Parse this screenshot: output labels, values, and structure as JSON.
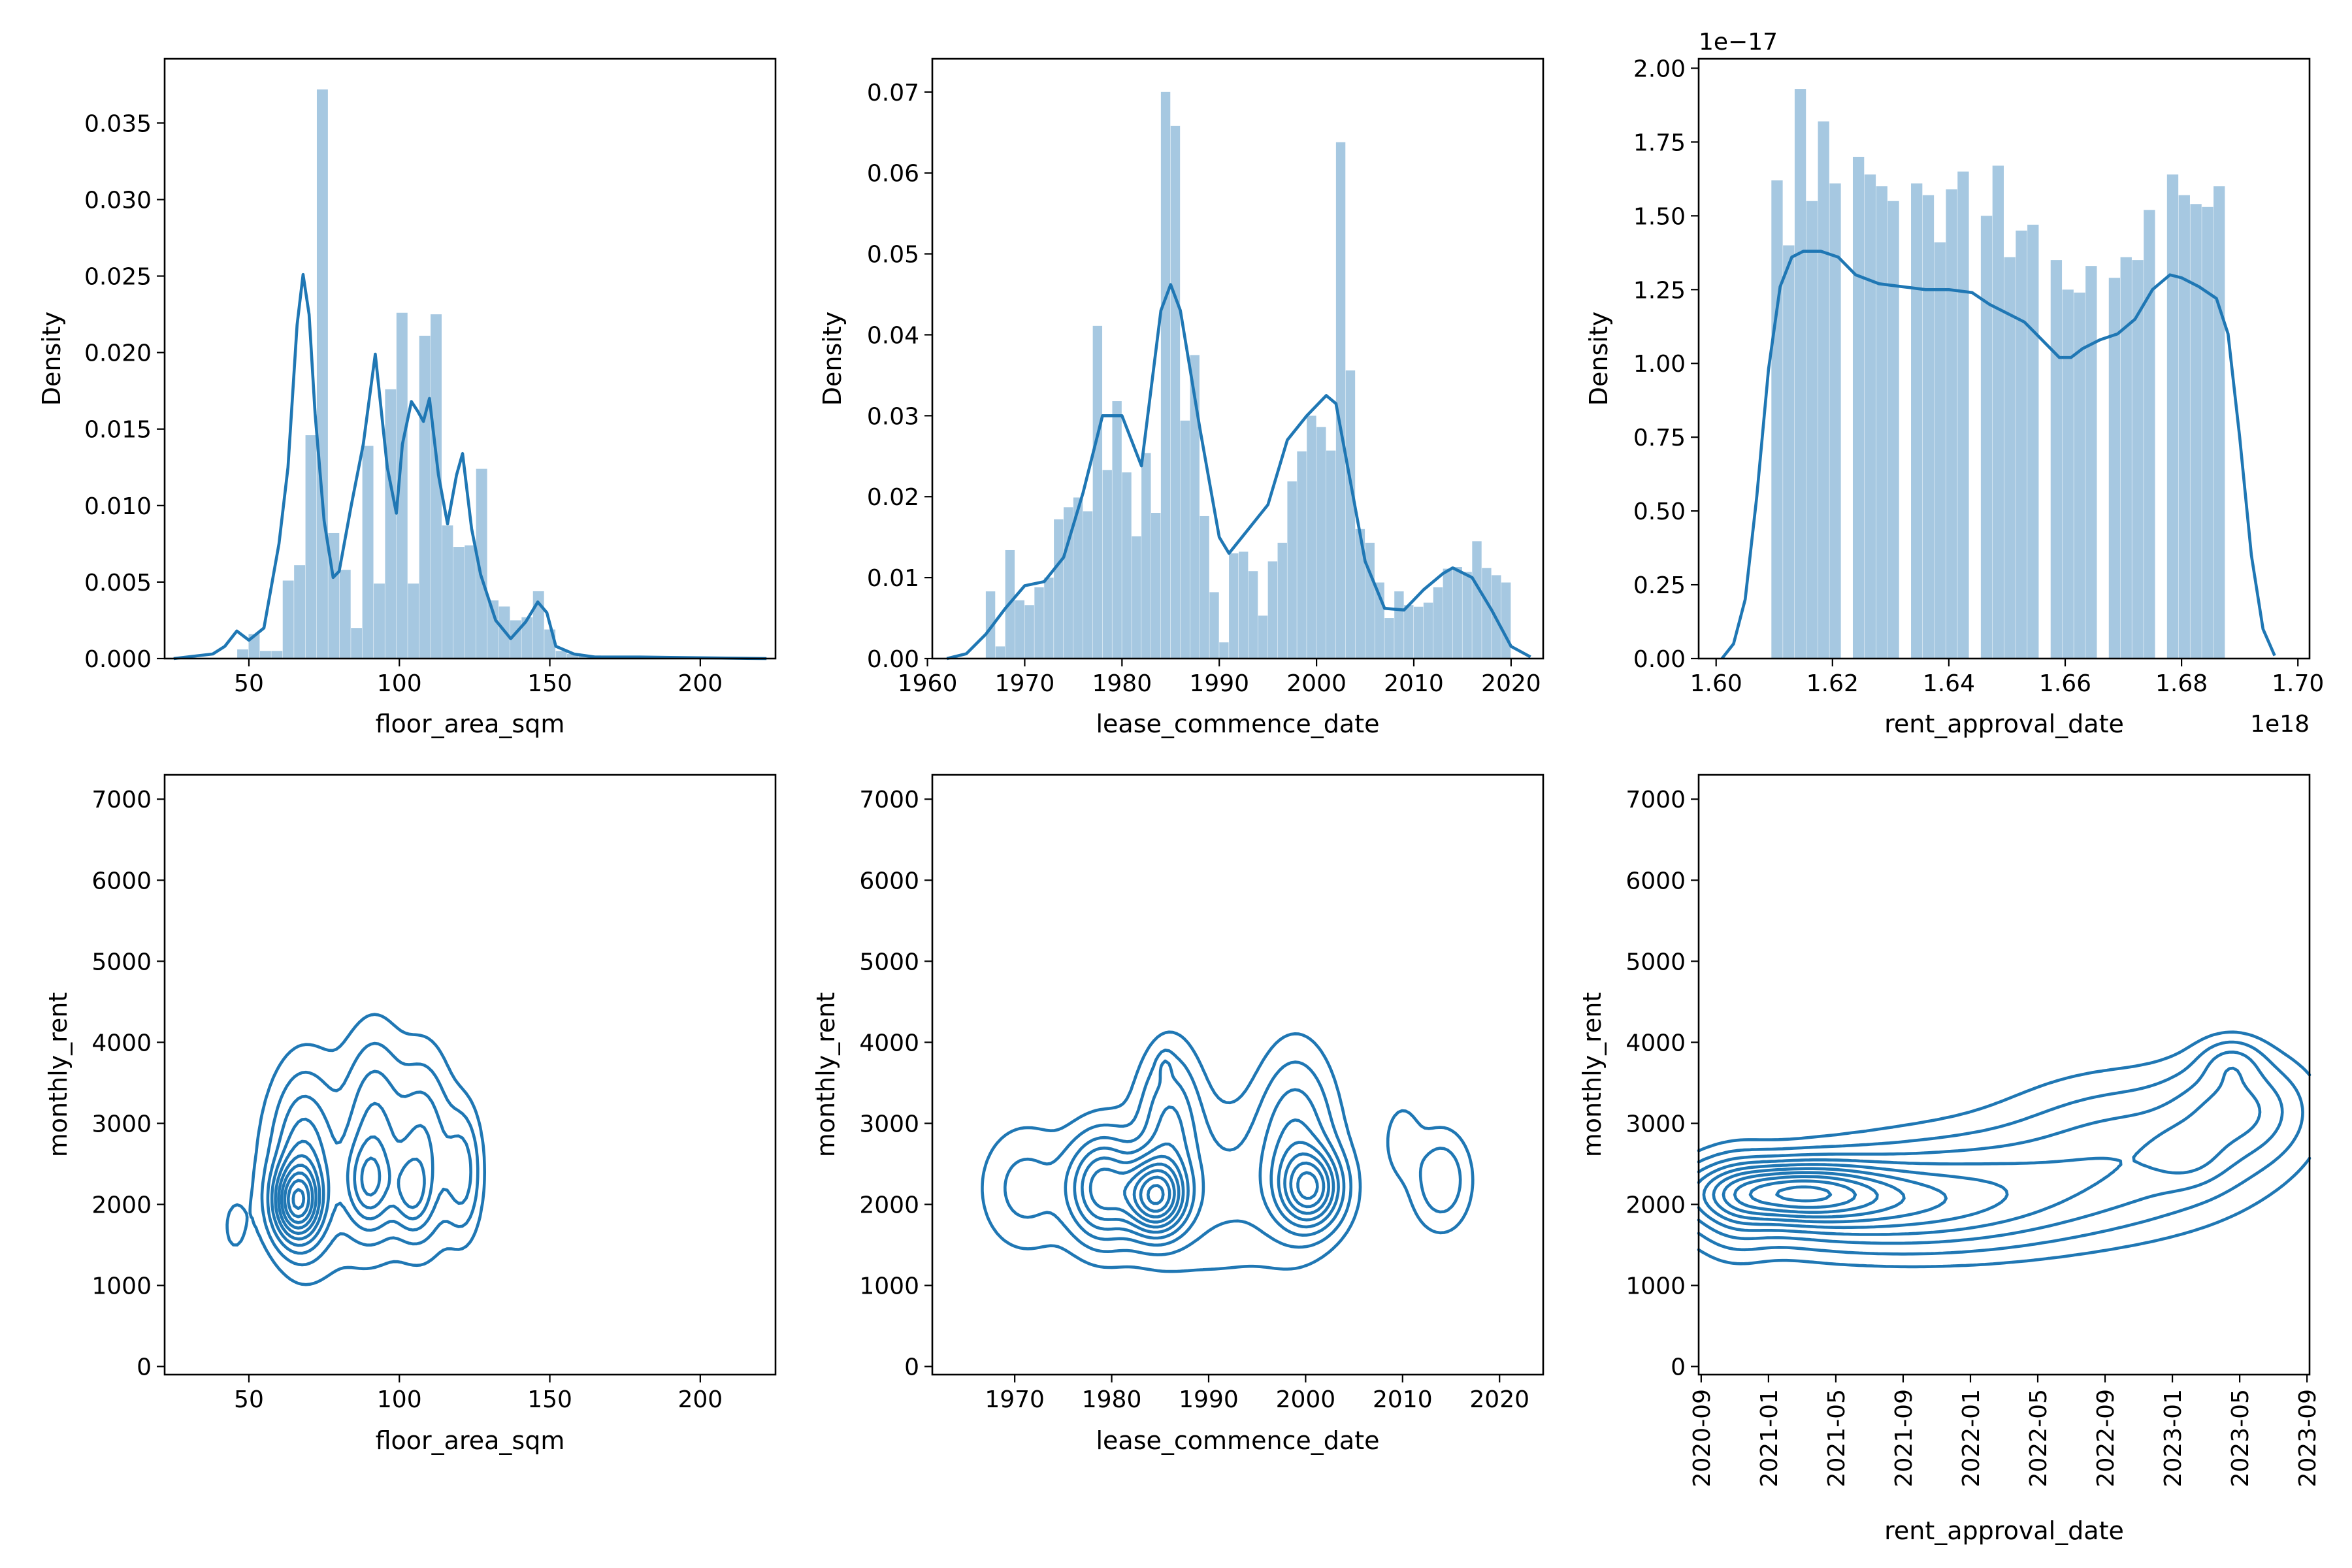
{
  "chart_data": [
    {
      "type": "histogram",
      "xlabel": "floor_area_sqm",
      "ylabel": "Density",
      "xlim": [
        22,
        225
      ],
      "ylim": [
        0,
        0.0392
      ],
      "xticks": [
        50,
        100,
        150,
        200
      ],
      "yticks": [
        0.0,
        0.005,
        0.01,
        0.015,
        0.02,
        0.025,
        0.03,
        0.035
      ],
      "ytick_labels": [
        "0.000",
        "0.005",
        "0.010",
        "0.015",
        "0.020",
        "0.025",
        "0.030",
        "0.035"
      ],
      "bins": {
        "start": 31,
        "width": 3.78
      },
      "values": [
        0,
        0,
        0,
        0,
        0.0006,
        0.0016,
        0.0005,
        0.0005,
        0.0051,
        0.0061,
        0.0146,
        0.0372,
        0.0082,
        0.0058,
        0.002,
        0.0139,
        0.0049,
        0.0176,
        0.0226,
        0.0049,
        0.0211,
        0.0225,
        0.0087,
        0.0073,
        0.0074,
        0.0124,
        0.0038,
        0.0034,
        0.0025,
        0.0027,
        0.0044,
        0.0019,
        0.0005,
        0.0003,
        0.0002,
        0.0002,
        0.0001,
        0.0001,
        0.0001,
        0.0001,
        0.0001,
        0,
        0,
        0,
        0,
        0,
        0,
        0,
        0,
        0
      ],
      "kde": {
        "x": [
          25,
          38,
          42,
          46,
          50,
          55,
          60,
          63,
          66,
          68,
          70,
          72,
          75,
          78,
          80,
          84,
          88,
          92,
          96,
          99,
          101,
          104,
          106,
          108,
          110,
          113,
          116,
          119,
          121,
          124,
          127,
          132,
          137,
          142,
          146,
          149,
          152,
          158,
          165,
          180,
          222
        ],
        "y": [
          0,
          0.0003,
          0.0008,
          0.0018,
          0.0012,
          0.002,
          0.0075,
          0.0125,
          0.0218,
          0.0251,
          0.0225,
          0.016,
          0.009,
          0.0053,
          0.0057,
          0.01,
          0.014,
          0.0199,
          0.0125,
          0.0095,
          0.014,
          0.0168,
          0.0162,
          0.0155,
          0.017,
          0.012,
          0.0088,
          0.012,
          0.0134,
          0.0085,
          0.0055,
          0.0025,
          0.0013,
          0.0024,
          0.0037,
          0.003,
          0.0008,
          0.0003,
          0.0001,
          0.0001,
          0
        ]
      }
    },
    {
      "type": "histogram",
      "xlabel": "lease_commence_date",
      "ylabel": "Density",
      "xlim": [
        1960.5,
        2023.3
      ],
      "ylim": [
        0,
        0.0741
      ],
      "xticks": [
        1960,
        1970,
        1980,
        1990,
        2000,
        2010,
        2020
      ],
      "yticks": [
        0.0,
        0.01,
        0.02,
        0.03,
        0.04,
        0.05,
        0.06,
        0.07
      ],
      "ytick_labels": [
        "0.00",
        "0.01",
        "0.02",
        "0.03",
        "0.04",
        "0.05",
        "0.06",
        "0.07"
      ],
      "bins": {
        "start": 1966,
        "width": 1.0
      },
      "values": [
        0.0083,
        0.0015,
        0.0134,
        0.0072,
        0.0066,
        0.0088,
        0.01,
        0.0172,
        0.0187,
        0.0199,
        0.0182,
        0.0411,
        0.0233,
        0.0318,
        0.023,
        0.0151,
        0.0254,
        0.018,
        0.07,
        0.0658,
        0.0294,
        0.0375,
        0.0176,
        0.0082,
        0.002,
        0.013,
        0.0132,
        0.0108,
        0.0053,
        0.012,
        0.0143,
        0.0219,
        0.0256,
        0.03,
        0.0286,
        0.0257,
        0.0638,
        0.0356,
        0.016,
        0.0143,
        0.0094,
        0.005,
        0.0083,
        0.0066,
        0.0064,
        0.0069,
        0.0088,
        0.0111,
        0.0113,
        0.0107,
        0.0145,
        0.0112,
        0.0103,
        0.0094
      ],
      "kde": {
        "x": [
          1962,
          1964,
          1966,
          1968,
          1970,
          1972,
          1974,
          1976,
          1978,
          1980,
          1982,
          1984,
          1985,
          1986,
          1988,
          1990,
          1991,
          1993,
          1995,
          1997,
          1999,
          2001,
          2002,
          2003,
          2005,
          2007,
          2009,
          2011,
          2013,
          2014,
          2016,
          2018,
          2020,
          2022
        ],
        "y": [
          0,
          0.0006,
          0.003,
          0.0062,
          0.009,
          0.0095,
          0.0125,
          0.0205,
          0.03,
          0.03,
          0.0238,
          0.043,
          0.0462,
          0.043,
          0.0285,
          0.015,
          0.013,
          0.016,
          0.019,
          0.027,
          0.03,
          0.0325,
          0.0315,
          0.025,
          0.012,
          0.0062,
          0.006,
          0.0085,
          0.0105,
          0.0112,
          0.01,
          0.006,
          0.0015,
          0.0002
        ]
      }
    },
    {
      "type": "histogram",
      "xlabel": "rent_approval_date",
      "ylabel": "Density",
      "x_offset_label": "1e18",
      "y_offset_label": "1e−17",
      "xlim": [
        1.597,
        1.702
      ],
      "ylim": [
        0,
        2.032
      ],
      "xticks": [
        1.6,
        1.62,
        1.64,
        1.66,
        1.68,
        1.7
      ],
      "xtick_labels": [
        "1.60",
        "1.62",
        "1.64",
        "1.66",
        "1.68",
        "1.70"
      ],
      "yticks": [
        0.0,
        0.25,
        0.5,
        0.75,
        1.0,
        1.25,
        1.5,
        1.75,
        2.0
      ],
      "ytick_labels": [
        "0.00",
        "0.25",
        "0.50",
        "0.75",
        "1.00",
        "1.25",
        "1.50",
        "1.75",
        "2.00"
      ],
      "bins": {
        "start": 1.6095,
        "width": 0.002
      },
      "values": [
        1.62,
        1.4,
        1.93,
        1.55,
        1.82,
        1.61,
        0,
        1.7,
        1.64,
        1.6,
        1.55,
        0,
        1.61,
        1.57,
        1.41,
        1.59,
        1.65,
        0,
        1.5,
        1.67,
        1.36,
        1.45,
        1.47,
        0,
        1.35,
        1.25,
        1.24,
        1.33,
        0,
        1.29,
        1.36,
        1.35,
        1.52,
        0,
        1.64,
        1.57,
        1.54,
        1.53,
        1.6
      ],
      "kde": {
        "x": [
          1.601,
          1.603,
          1.605,
          1.607,
          1.609,
          1.611,
          1.613,
          1.615,
          1.618,
          1.621,
          1.624,
          1.628,
          1.632,
          1.636,
          1.64,
          1.644,
          1.647,
          1.65,
          1.653,
          1.656,
          1.659,
          1.661,
          1.663,
          1.666,
          1.669,
          1.672,
          1.675,
          1.678,
          1.68,
          1.683,
          1.686,
          1.688,
          1.69,
          1.692,
          1.694,
          1.696
        ],
        "y": [
          0.0,
          0.05,
          0.2,
          0.55,
          0.98,
          1.26,
          1.36,
          1.38,
          1.38,
          1.36,
          1.3,
          1.27,
          1.26,
          1.25,
          1.25,
          1.24,
          1.2,
          1.17,
          1.14,
          1.08,
          1.02,
          1.02,
          1.05,
          1.08,
          1.1,
          1.15,
          1.25,
          1.3,
          1.29,
          1.26,
          1.22,
          1.1,
          0.75,
          0.35,
          0.1,
          0.01
        ]
      }
    },
    {
      "type": "kde-contour",
      "xlabel": "floor_area_sqm",
      "ylabel": "monthly_rent",
      "xlim": [
        22,
        225
      ],
      "ylim": [
        -100,
        7300
      ],
      "xticks": [
        50,
        100,
        150,
        200
      ],
      "yticks": [
        0,
        1000,
        2000,
        3000,
        4000,
        5000,
        6000,
        7000
      ],
      "levels": 10,
      "peaks": [
        {
          "x": 66,
          "y": 2030,
          "sx": 5,
          "sy": 300,
          "w": 1.0
        },
        {
          "x": 68,
          "y": 2500,
          "sx": 6,
          "sy": 650,
          "w": 0.4
        },
        {
          "x": 90,
          "y": 2250,
          "sx": 5,
          "sy": 350,
          "w": 0.45
        },
        {
          "x": 92,
          "y": 3000,
          "sx": 6,
          "sy": 700,
          "w": 0.3
        },
        {
          "x": 104,
          "y": 2150,
          "sx": 4,
          "sy": 300,
          "w": 0.35
        },
        {
          "x": 108,
          "y": 2700,
          "sx": 6,
          "sy": 700,
          "w": 0.35
        },
        {
          "x": 121,
          "y": 2400,
          "sx": 4,
          "sy": 500,
          "w": 0.3
        },
        {
          "x": 80,
          "y": 2500,
          "sx": 18,
          "sy": 900,
          "w": 0.15
        },
        {
          "x": 45,
          "y": 1700,
          "sx": 4,
          "sy": 350,
          "w": 0.06
        },
        {
          "x": 145,
          "y": 3000,
          "sx": 5,
          "sy": 800,
          "w": 0.06
        }
      ]
    },
    {
      "type": "kde-contour",
      "xlabel": "lease_commence_date",
      "ylabel": "monthly_rent",
      "xlim": [
        1961.5,
        2024.5
      ],
      "ylim": [
        -100,
        7300
      ],
      "xticks": [
        1970,
        1980,
        1990,
        2000,
        2010,
        2020
      ],
      "yticks": [
        0,
        1000,
        2000,
        3000,
        4000,
        5000,
        6000,
        7000
      ],
      "levels": 10,
      "peaks": [
        {
          "x": 1984.5,
          "y": 2100,
          "sx": 2.0,
          "sy": 300,
          "w": 1.0
        },
        {
          "x": 1979,
          "y": 2200,
          "sx": 2.2,
          "sy": 400,
          "w": 0.6
        },
        {
          "x": 1986,
          "y": 3000,
          "sx": 2.0,
          "sy": 600,
          "w": 0.3
        },
        {
          "x": 1985.5,
          "y": 3700,
          "sx": 0.5,
          "sy": 120,
          "w": 0.1
        },
        {
          "x": 2000.5,
          "y": 2200,
          "sx": 2.0,
          "sy": 300,
          "w": 0.7
        },
        {
          "x": 1999,
          "y": 2800,
          "sx": 2.5,
          "sy": 700,
          "w": 0.3
        },
        {
          "x": 1971,
          "y": 2200,
          "sx": 3.0,
          "sy": 500,
          "w": 0.15
        },
        {
          "x": 2014,
          "y": 2300,
          "sx": 2.0,
          "sy": 400,
          "w": 0.2
        },
        {
          "x": 2010,
          "y": 2800,
          "sx": 1.2,
          "sy": 300,
          "w": 0.1
        },
        {
          "x": 1990,
          "y": 2200,
          "sx": 8,
          "sy": 700,
          "w": 0.15
        }
      ]
    },
    {
      "type": "kde-contour",
      "xlabel": "rent_approval_date",
      "ylabel": "monthly_rent",
      "xlim": [
        -0.15,
        36.15
      ],
      "ylim": [
        -100,
        7300
      ],
      "xticks": [
        0,
        4,
        8,
        12,
        16,
        20,
        24,
        28,
        32,
        36
      ],
      "xtick_labels": [
        "2020-09",
        "2021-01",
        "2021-05",
        "2021-09",
        "2022-01",
        "2022-05",
        "2022-09",
        "2023-01",
        "2023-05",
        "2023-09"
      ],
      "yticks": [
        0,
        1000,
        2000,
        3000,
        4000,
        5000,
        6000,
        7000
      ],
      "levels": 10,
      "peaks": [
        {
          "x": 5.5,
          "y": 2150,
          "sx": 3.5,
          "sy": 230,
          "w": 1.0
        },
        {
          "x": 10,
          "y": 2000,
          "sx": 6,
          "sy": 350,
          "w": 0.5
        },
        {
          "x": 17,
          "y": 2200,
          "sx": 6,
          "sy": 450,
          "w": 0.3
        },
        {
          "x": 26,
          "y": 2700,
          "sx": 5,
          "sy": 550,
          "w": 0.3
        },
        {
          "x": 32,
          "y": 3200,
          "sx": 2.5,
          "sy": 400,
          "w": 0.35
        },
        {
          "x": 31.5,
          "y": 3750,
          "sx": 1.2,
          "sy": 200,
          "w": 0.2
        },
        {
          "x": 29,
          "y": 2600,
          "sx": 1.5,
          "sy": 250,
          "w": 0.15
        },
        {
          "x": 2,
          "y": 2000,
          "sx": 1.5,
          "sy": 400,
          "w": 0.2
        }
      ]
    }
  ]
}
